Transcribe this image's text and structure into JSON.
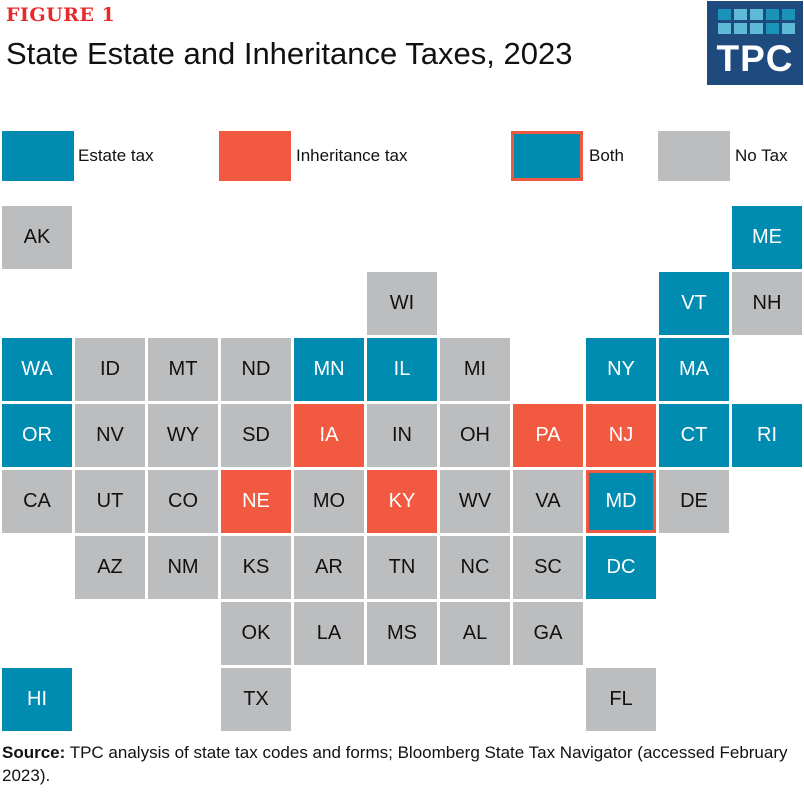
{
  "header": {
    "figure_label": "FIGURE 1",
    "title": "State Estate and Inheritance Taxes, 2023",
    "logo_text": "TPC"
  },
  "colors": {
    "estate": "#008bb0",
    "inheritance": "#f15a40",
    "both_fill": "#008bb0",
    "both_border": "#f15a40",
    "none": "#bcbdbf",
    "text_light": "#ffffff",
    "text_dark": "#111111"
  },
  "legend": [
    {
      "key": "estate",
      "label": "Estate tax"
    },
    {
      "key": "inheritance",
      "label": "Inheritance tax"
    },
    {
      "key": "both",
      "label": "Both"
    },
    {
      "key": "none",
      "label": "No Tax"
    }
  ],
  "source": {
    "label": "Source:",
    "text": " TPC analysis of state tax codes and forms; Bloomberg State Tax Navigator (accessed February 2023)."
  },
  "chart_data": {
    "type": "heatmap",
    "subtype": "tile-grid-map",
    "title": "State Estate and Inheritance Taxes, 2023",
    "categories": [
      "estate",
      "inheritance",
      "both",
      "none"
    ],
    "states": [
      {
        "abbr": "AK",
        "row": 0,
        "col": 0,
        "tax": "none"
      },
      {
        "abbr": "ME",
        "row": 0,
        "col": 10,
        "tax": "estate"
      },
      {
        "abbr": "WI",
        "row": 1,
        "col": 5,
        "tax": "none"
      },
      {
        "abbr": "VT",
        "row": 1,
        "col": 9,
        "tax": "estate"
      },
      {
        "abbr": "NH",
        "row": 1,
        "col": 10,
        "tax": "none"
      },
      {
        "abbr": "WA",
        "row": 2,
        "col": 0,
        "tax": "estate"
      },
      {
        "abbr": "ID",
        "row": 2,
        "col": 1,
        "tax": "none"
      },
      {
        "abbr": "MT",
        "row": 2,
        "col": 2,
        "tax": "none"
      },
      {
        "abbr": "ND",
        "row": 2,
        "col": 3,
        "tax": "none"
      },
      {
        "abbr": "MN",
        "row": 2,
        "col": 4,
        "tax": "estate"
      },
      {
        "abbr": "IL",
        "row": 2,
        "col": 5,
        "tax": "estate"
      },
      {
        "abbr": "MI",
        "row": 2,
        "col": 6,
        "tax": "none"
      },
      {
        "abbr": "NY",
        "row": 2,
        "col": 8,
        "tax": "estate"
      },
      {
        "abbr": "MA",
        "row": 2,
        "col": 9,
        "tax": "estate"
      },
      {
        "abbr": "OR",
        "row": 3,
        "col": 0,
        "tax": "estate"
      },
      {
        "abbr": "NV",
        "row": 3,
        "col": 1,
        "tax": "none"
      },
      {
        "abbr": "WY",
        "row": 3,
        "col": 2,
        "tax": "none"
      },
      {
        "abbr": "SD",
        "row": 3,
        "col": 3,
        "tax": "none"
      },
      {
        "abbr": "IA",
        "row": 3,
        "col": 4,
        "tax": "inheritance"
      },
      {
        "abbr": "IN",
        "row": 3,
        "col": 5,
        "tax": "none"
      },
      {
        "abbr": "OH",
        "row": 3,
        "col": 6,
        "tax": "none"
      },
      {
        "abbr": "PA",
        "row": 3,
        "col": 7,
        "tax": "inheritance"
      },
      {
        "abbr": "NJ",
        "row": 3,
        "col": 8,
        "tax": "inheritance"
      },
      {
        "abbr": "CT",
        "row": 3,
        "col": 9,
        "tax": "estate"
      },
      {
        "abbr": "RI",
        "row": 3,
        "col": 10,
        "tax": "estate"
      },
      {
        "abbr": "CA",
        "row": 4,
        "col": 0,
        "tax": "none"
      },
      {
        "abbr": "UT",
        "row": 4,
        "col": 1,
        "tax": "none"
      },
      {
        "abbr": "CO",
        "row": 4,
        "col": 2,
        "tax": "none"
      },
      {
        "abbr": "NE",
        "row": 4,
        "col": 3,
        "tax": "inheritance"
      },
      {
        "abbr": "MO",
        "row": 4,
        "col": 4,
        "tax": "none"
      },
      {
        "abbr": "KY",
        "row": 4,
        "col": 5,
        "tax": "inheritance"
      },
      {
        "abbr": "WV",
        "row": 4,
        "col": 6,
        "tax": "none"
      },
      {
        "abbr": "VA",
        "row": 4,
        "col": 7,
        "tax": "none"
      },
      {
        "abbr": "MD",
        "row": 4,
        "col": 8,
        "tax": "both"
      },
      {
        "abbr": "DE",
        "row": 4,
        "col": 9,
        "tax": "none"
      },
      {
        "abbr": "AZ",
        "row": 5,
        "col": 1,
        "tax": "none"
      },
      {
        "abbr": "NM",
        "row": 5,
        "col": 2,
        "tax": "none"
      },
      {
        "abbr": "KS",
        "row": 5,
        "col": 3,
        "tax": "none"
      },
      {
        "abbr": "AR",
        "row": 5,
        "col": 4,
        "tax": "none"
      },
      {
        "abbr": "TN",
        "row": 5,
        "col": 5,
        "tax": "none"
      },
      {
        "abbr": "NC",
        "row": 5,
        "col": 6,
        "tax": "none"
      },
      {
        "abbr": "SC",
        "row": 5,
        "col": 7,
        "tax": "none"
      },
      {
        "abbr": "DC",
        "row": 5,
        "col": 8,
        "tax": "estate"
      },
      {
        "abbr": "OK",
        "row": 6,
        "col": 3,
        "tax": "none"
      },
      {
        "abbr": "LA",
        "row": 6,
        "col": 4,
        "tax": "none"
      },
      {
        "abbr": "MS",
        "row": 6,
        "col": 5,
        "tax": "none"
      },
      {
        "abbr": "AL",
        "row": 6,
        "col": 6,
        "tax": "none"
      },
      {
        "abbr": "GA",
        "row": 6,
        "col": 7,
        "tax": "none"
      },
      {
        "abbr": "HI",
        "row": 7,
        "col": 0,
        "tax": "estate"
      },
      {
        "abbr": "TX",
        "row": 7,
        "col": 3,
        "tax": "none"
      },
      {
        "abbr": "FL",
        "row": 7,
        "col": 8,
        "tax": "none"
      }
    ]
  }
}
